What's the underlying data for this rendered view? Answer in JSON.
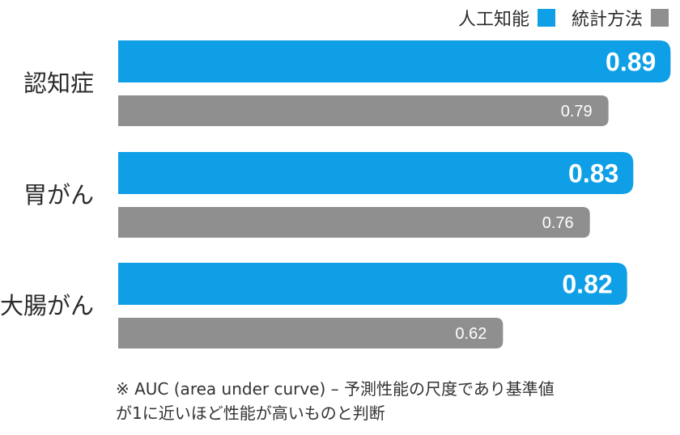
{
  "chart_data": {
    "type": "bar",
    "orientation": "horizontal",
    "categories": [
      "認知症",
      "胃がん",
      "大腸がん"
    ],
    "series": [
      {
        "name": "人工知能",
        "values": [
          0.89,
          0.83,
          0.82
        ],
        "color": "#0e9fe6",
        "value_labels": [
          "0.89",
          "0.83",
          "0.82"
        ]
      },
      {
        "name": "統計方法",
        "values": [
          0.79,
          0.76,
          0.62
        ],
        "color": "#8f8f8f",
        "value_labels": [
          "0.79",
          "0.76",
          "0.62"
        ]
      }
    ],
    "xlim": [
      0,
      0.9
    ],
    "grid": false,
    "legend_position": "top-right"
  },
  "note": {
    "line1": "※ AUC (area under curve) – 予測性能の尺度であり基準値",
    "line2": "が1に近いほど性能が高いものと判断"
  }
}
